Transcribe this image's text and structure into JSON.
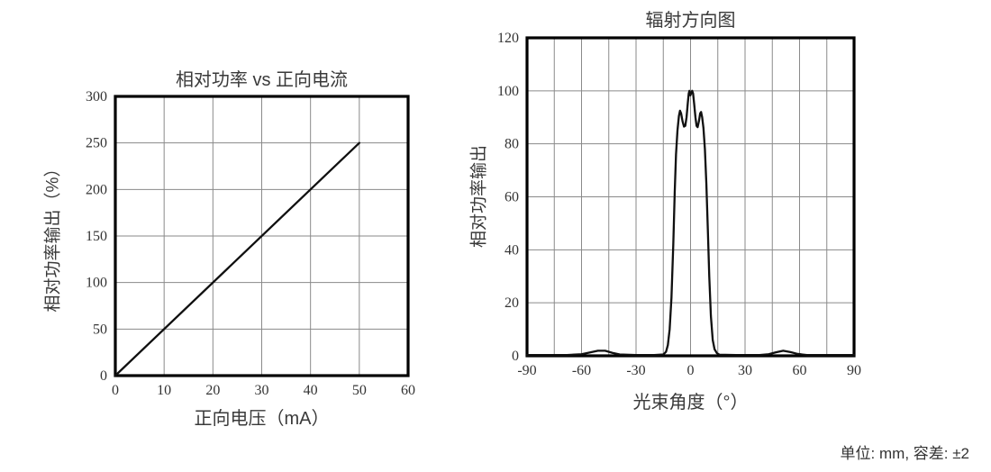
{
  "page": {
    "caption": "单位: mm, 容差: ±2"
  },
  "colors": {
    "background": "#ffffff",
    "frame": "#000000",
    "grid": "#8a8a8a",
    "curve": "#101010",
    "tick_text": "#333333",
    "label_text": "#3a3a3a"
  },
  "chart_data": [
    {
      "type": "line",
      "title": "相对功率 vs 正向电流",
      "xlabel": "正向电压（mA）",
      "ylabel": "相对功率输出（%）",
      "xlim": [
        0,
        60
      ],
      "ylim": [
        0,
        300
      ],
      "grid": true,
      "legend": false,
      "x_ticks": [
        0,
        10,
        20,
        30,
        40,
        50,
        60
      ],
      "x_tick_labels": [
        "0",
        "10",
        "20",
        "30",
        "40",
        "50",
        "60"
      ],
      "y_ticks": [
        0,
        50,
        100,
        150,
        200,
        250,
        300
      ],
      "y_tick_labels": [
        "0",
        "50",
        "100",
        "150",
        "200",
        "250",
        "300"
      ],
      "x_gridlines": [
        10,
        20,
        30,
        40,
        50
      ],
      "y_gridlines": [
        50,
        100,
        150,
        200,
        250
      ],
      "series": [
        {
          "name": "relative-power-line",
          "points": [
            [
              0,
              0
            ],
            [
              50,
              250
            ]
          ]
        }
      ]
    },
    {
      "type": "line",
      "title": "辐射方向图",
      "xlabel": "光束角度（°）",
      "ylabel": "相对功率输出",
      "xlim": [
        -90,
        90
      ],
      "ylim": [
        0,
        120
      ],
      "grid": true,
      "legend": false,
      "x_ticks": [
        -90,
        -60,
        -30,
        0,
        30,
        60,
        90
      ],
      "x_tick_labels": [
        "-90",
        "-60",
        "-30",
        "0",
        "30",
        "60",
        "90"
      ],
      "y_ticks": [
        0,
        20,
        40,
        60,
        80,
        100,
        120
      ],
      "y_tick_labels": [
        "0",
        "20",
        "40",
        "60",
        "80",
        "100",
        "120"
      ],
      "x_gridlines": [
        -75,
        -60,
        -45,
        -30,
        -15,
        0,
        15,
        30,
        45,
        60,
        75
      ],
      "y_gridlines": [
        20,
        40,
        60,
        80,
        100
      ],
      "series": [
        {
          "name": "radiation-pattern-line",
          "points": [
            [
              -90,
              0.3
            ],
            [
              -68,
              0.3
            ],
            [
              -60,
              0.6
            ],
            [
              -55,
              1.3
            ],
            [
              -51,
              1.9
            ],
            [
              -47,
              1.9
            ],
            [
              -43,
              1.1
            ],
            [
              -39,
              0.5
            ],
            [
              -30,
              0.3
            ],
            [
              -20,
              0.3
            ],
            [
              -15,
              0.5
            ],
            [
              -13.5,
              1.5
            ],
            [
              -12.5,
              4
            ],
            [
              -11.5,
              10
            ],
            [
              -10.5,
              22
            ],
            [
              -9.5,
              42
            ],
            [
              -8.7,
              62
            ],
            [
              -8,
              76
            ],
            [
              -7.2,
              85
            ],
            [
              -6.4,
              90.5
            ],
            [
              -5.8,
              92.5
            ],
            [
              -5.2,
              91.5
            ],
            [
              -4.4,
              88.5
            ],
            [
              -3.6,
              86.5
            ],
            [
              -2.9,
              86.8
            ],
            [
              -2.2,
              90
            ],
            [
              -1.5,
              95.5
            ],
            [
              -1,
              99
            ],
            [
              -0.6,
              100
            ],
            [
              -0.1,
              98.3
            ],
            [
              0.4,
              99.2
            ],
            [
              0.9,
              100
            ],
            [
              1.4,
              99
            ],
            [
              2,
              95
            ],
            [
              2.7,
              90
            ],
            [
              3.3,
              86.8
            ],
            [
              3.9,
              86.3
            ],
            [
              4.6,
              88.5
            ],
            [
              5.3,
              91.5
            ],
            [
              5.8,
              92
            ],
            [
              6.4,
              90
            ],
            [
              7.1,
              86
            ],
            [
              7.9,
              78
            ],
            [
              8.7,
              65
            ],
            [
              9.5,
              48
            ],
            [
              10.3,
              30
            ],
            [
              11.2,
              15
            ],
            [
              12.2,
              6
            ],
            [
              13.2,
              2.5
            ],
            [
              14.5,
              1
            ],
            [
              16,
              0.4
            ],
            [
              25,
              0.3
            ],
            [
              38,
              0.3
            ],
            [
              43,
              0.6
            ],
            [
              47,
              1.3
            ],
            [
              51,
              1.9
            ],
            [
              55,
              1.4
            ],
            [
              59,
              0.7
            ],
            [
              64,
              0.3
            ],
            [
              75,
              0.3
            ],
            [
              90,
              0.3
            ]
          ]
        }
      ]
    }
  ]
}
